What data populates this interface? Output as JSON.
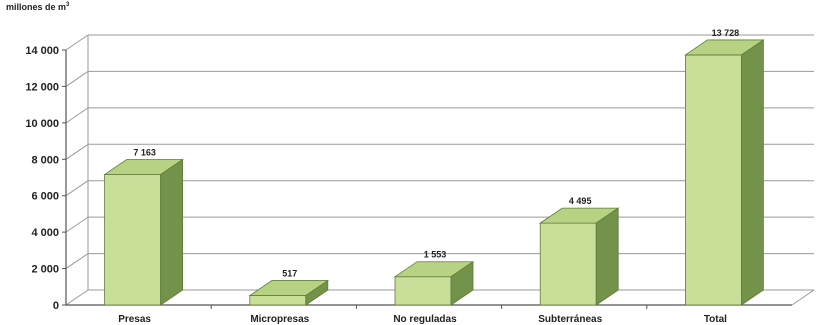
{
  "chart_data": {
    "type": "bar",
    "title": "",
    "ylabel": "millones de m",
    "ylabel_superscript": "3",
    "ylim": [
      0,
      14000
    ],
    "yticks": [
      0,
      2000,
      4000,
      6000,
      8000,
      10000,
      12000,
      14000
    ],
    "ytick_labels": [
      "0",
      "2 000",
      "4 000",
      "6 000",
      "8 000",
      "10 000",
      "12 000",
      "14 000"
    ],
    "categories": [
      "Presas",
      "Micropresas",
      "No reguladas",
      "Subterráneas",
      "Total"
    ],
    "values": [
      7163,
      517,
      1553,
      4495,
      13728
    ],
    "value_labels": [
      "7 163",
      "517",
      "1 553",
      "4 495",
      "13 728"
    ],
    "grid": true,
    "legend": "none",
    "style": "3d",
    "colors": {
      "bar_front": "#c8df9a",
      "bar_top": "#b7d282",
      "bar_side": "#73934a",
      "bar_edge": "#5f7c3a",
      "grid": "#9a9a9a",
      "axis": "#555555"
    }
  }
}
